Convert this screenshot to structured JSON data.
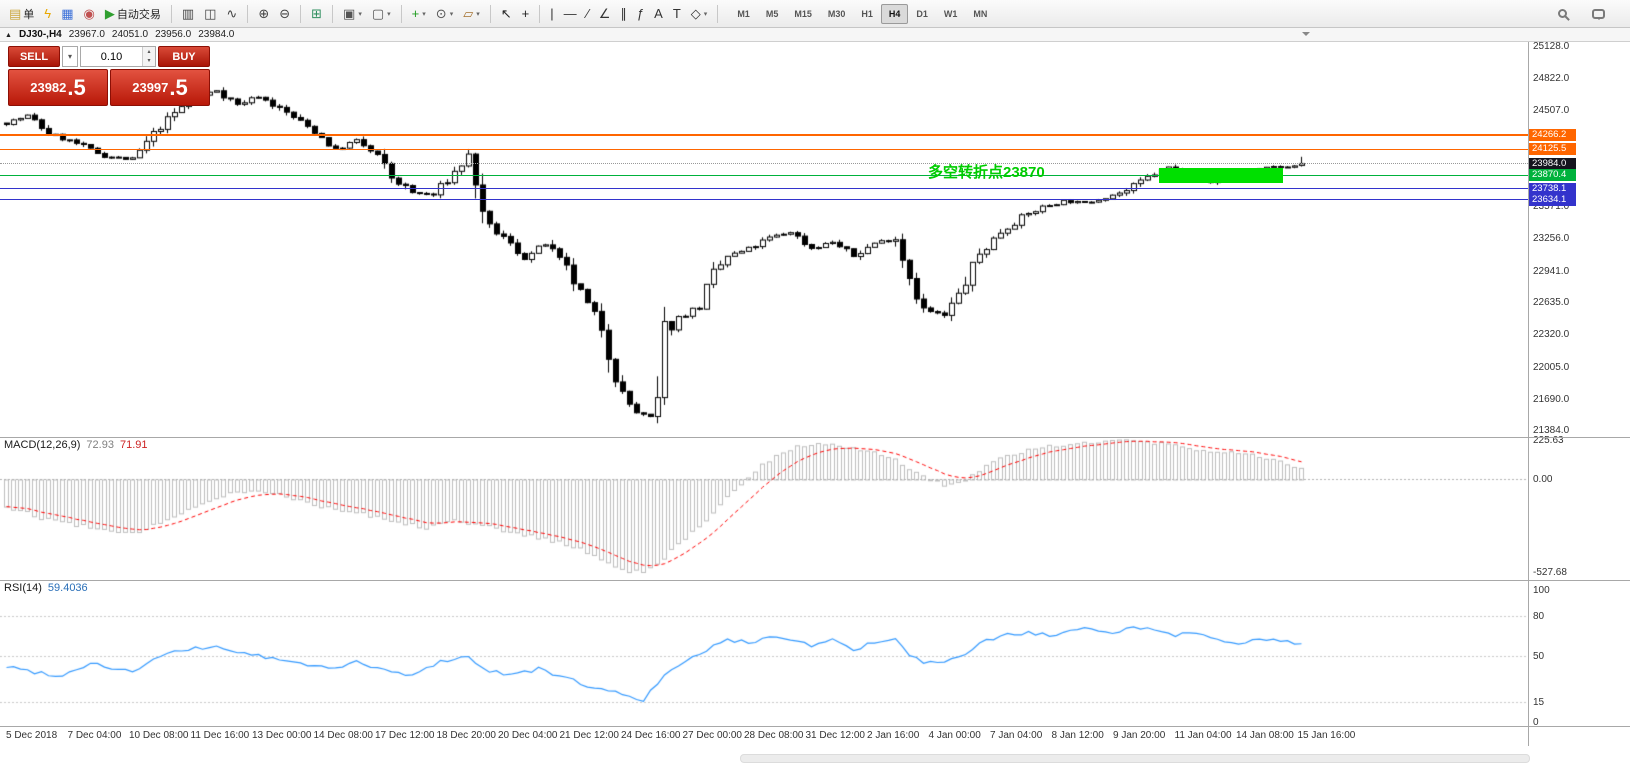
{
  "toolbar": {
    "items": [
      {
        "name": "new-order-button",
        "glyph": "▤",
        "color": "#caa53a",
        "label": "单"
      },
      {
        "name": "quick-trade-icon",
        "glyph": "ϟ",
        "color": "#e8a800"
      },
      {
        "name": "market-watch-icon",
        "glyph": "▦",
        "color": "#3a6fd8"
      },
      {
        "name": "community-icon",
        "glyph": "◉",
        "color": "#c05050"
      },
      {
        "name": "auto-trading-button",
        "glyph": "▶",
        "color": "#2f9e2f",
        "label": "自动交易"
      },
      {
        "kind": "sep"
      },
      {
        "name": "bar-chart-icon",
        "glyph": "▥",
        "color": "#444444"
      },
      {
        "name": "candlestick-chart-icon",
        "glyph": "◫",
        "color": "#444444"
      },
      {
        "name": "line-chart-icon",
        "glyph": "∿",
        "color": "#444444"
      },
      {
        "kind": "sep"
      },
      {
        "name": "zoom-in-icon",
        "glyph": "⊕",
        "color": "#444444"
      },
      {
        "name": "zoom-out-icon",
        "glyph": "⊖",
        "color": "#444444"
      },
      {
        "kind": "sep"
      },
      {
        "name": "tile-windows-icon",
        "glyph": "⊞",
        "color": "#2f8f5f"
      },
      {
        "kind": "sep"
      },
      {
        "name": "new-chart-icon",
        "glyph": "▣",
        "color": "#555555",
        "dropdown": true
      },
      {
        "name": "profiles-icon",
        "glyph": "▢",
        "color": "#555555",
        "dropdown": true
      },
      {
        "kind": "sep"
      },
      {
        "name": "indicators-icon",
        "glyph": "+",
        "color": "#1f9b1f",
        "dropdown": true
      },
      {
        "name": "periods-icon",
        "glyph": "⊙",
        "color": "#555555",
        "dropdown": true
      },
      {
        "name": "templates-icon",
        "glyph": "▱",
        "color": "#a5722f",
        "dropdown": true
      },
      {
        "kind": "sep"
      },
      {
        "name": "cursor-icon",
        "glyph": "↖",
        "color": "#222222"
      },
      {
        "name": "crosshair-icon",
        "glyph": "+",
        "color": "#222222"
      },
      {
        "kind": "sep"
      },
      {
        "name": "vertical-line-icon",
        "glyph": "|",
        "color": "#333333"
      },
      {
        "name": "horizontal-line-icon",
        "glyph": "—",
        "color": "#333333"
      },
      {
        "name": "trendline-icon",
        "glyph": "∕",
        "color": "#333333"
      },
      {
        "name": "angle-icon",
        "glyph": "∠",
        "color": "#333333"
      },
      {
        "name": "channel-icon",
        "glyph": "∥",
        "color": "#333333"
      },
      {
        "name": "fibonacci-icon",
        "glyph": "ƒ",
        "color": "#333333"
      },
      {
        "name": "text-icon",
        "glyph": "A",
        "color": "#333333"
      },
      {
        "name": "label-icon",
        "glyph": "T",
        "color": "#333333"
      },
      {
        "name": "shapes-icon",
        "glyph": "◇",
        "color": "#333333",
        "dropdown": true
      },
      {
        "kind": "sep"
      }
    ],
    "timeframes": {
      "options": [
        "M1",
        "M5",
        "M15",
        "M30",
        "H1",
        "H4",
        "D1",
        "W1",
        "MN"
      ],
      "active": "H4"
    }
  },
  "chart_header": {
    "symbol": "DJ30-,H4",
    "open": "23967.0",
    "high": "24051.0",
    "low": "23956.0",
    "close": "23984.0"
  },
  "trade_panel": {
    "sell_label": "SELL",
    "buy_label": "BUY",
    "volume": "0.10",
    "sell_price": "23982",
    "sell_pip": ".5",
    "buy_price": "23997",
    "buy_pip": ".5"
  },
  "annotation": {
    "text": "多空转折点23870",
    "color": "#00cc00",
    "bar": 132,
    "price": 23935
  },
  "highlight_box": {
    "bar_start": 165,
    "bar_end": 182,
    "price_top": 23945,
    "price_bottom": 23800,
    "color": "#00e000"
  },
  "levels": [
    {
      "name": "resistance-1",
      "price": 24266.2,
      "label": "24266.2",
      "color": "#ff6600",
      "thickness": 2
    },
    {
      "name": "resistance-2",
      "price": 24125.5,
      "label": "24125.5",
      "color": "#ff6600",
      "thickness": 1
    },
    {
      "name": "bid-price",
      "price": 23984.0,
      "label": "23984.0",
      "style": "dotted",
      "line_color": "#999999",
      "color": "#14141e"
    },
    {
      "name": "pivot-green",
      "price": 23870.4,
      "label": "23870.4",
      "color": "#00b23c",
      "thickness": 1
    },
    {
      "name": "support-1",
      "price": 23738.1,
      "label": "23738.1",
      "color": "#3333cc",
      "thickness": 1
    },
    {
      "name": "support-2",
      "price": 23634.1,
      "label": "23634.1",
      "color": "#3333cc",
      "thickness": 1
    }
  ],
  "price_axis_ticks": [
    "25128.0",
    "24822.0",
    "24507.0",
    "23571.0",
    "23256.0",
    "22941.0",
    "22635.0",
    "22320.0",
    "22005.0",
    "21690.0",
    "21384.0"
  ],
  "macd_panel": {
    "title": "MACD(12,26,9)",
    "value1": "72.93",
    "value2": "71.91",
    "scale": [
      "225.63",
      "0.00",
      "-527.68"
    ]
  },
  "rsi_panel": {
    "title": "RSI(14)",
    "value": "59.4036",
    "scale": [
      "100",
      "80",
      "50",
      "15",
      "0"
    ]
  },
  "time_axis": [
    "5 Dec 2018",
    "7 Dec 04:00",
    "10 Dec 08:00",
    "11 Dec 16:00",
    "13 Dec 00:00",
    "14 Dec 08:00",
    "17 Dec 12:00",
    "18 Dec 20:00",
    "20 Dec 04:00",
    "21 Dec 12:00",
    "24 Dec 16:00",
    "27 Dec 00:00",
    "28 Dec 08:00",
    "31 Dec 12:00",
    "2 Jan 16:00",
    "4 Jan 00:00",
    "7 Jan 04:00",
    "8 Jan 12:00",
    "9 Jan 20:00",
    "11 Jan 04:00",
    "14 Jan 08:00",
    "15 Jan 16:00"
  ],
  "chart_data": [
    {
      "type": "candlestick",
      "title": "DJ30-,H4",
      "x_start": "5 Dec 2018",
      "x_end": "15 Jan 16:00",
      "bar_count": 186,
      "ylim": [
        21320,
        25170
      ],
      "up_color": "#ffffff",
      "down_color": "#000000",
      "outline": "#000000",
      "last_candle": {
        "open": 23967.0,
        "high": 24051.0,
        "low": 23956.0,
        "close": 23984.0
      },
      "price_path_anchors": [
        [
          0,
          24380
        ],
        [
          3,
          24450
        ],
        [
          6,
          24280
        ],
        [
          10,
          24180
        ],
        [
          14,
          24060
        ],
        [
          18,
          24020
        ],
        [
          22,
          24350
        ],
        [
          26,
          24600
        ],
        [
          30,
          24700
        ],
        [
          33,
          24560
        ],
        [
          36,
          24640
        ],
        [
          40,
          24480
        ],
        [
          44,
          24300
        ],
        [
          47,
          24120
        ],
        [
          50,
          24210
        ],
        [
          53,
          24050
        ],
        [
          55,
          23850
        ],
        [
          58,
          23700
        ],
        [
          61,
          23680
        ],
        [
          64,
          23900
        ],
        [
          66,
          24060
        ],
        [
          67,
          23850
        ],
        [
          68,
          23420
        ],
        [
          71,
          23260
        ],
        [
          74,
          23060
        ],
        [
          77,
          23200
        ],
        [
          80,
          22950
        ],
        [
          83,
          22600
        ],
        [
          85,
          22400
        ],
        [
          87,
          21950
        ],
        [
          88,
          21720
        ],
        [
          90,
          21560
        ],
        [
          92,
          21500
        ],
        [
          93,
          21620
        ],
        [
          94,
          22320
        ],
        [
          96,
          22480
        ],
        [
          99,
          22600
        ],
        [
          101,
          22900
        ],
        [
          103,
          23080
        ],
        [
          106,
          23150
        ],
        [
          109,
          23260
        ],
        [
          112,
          23320
        ],
        [
          115,
          23160
        ],
        [
          118,
          23220
        ],
        [
          121,
          23080
        ],
        [
          124,
          23210
        ],
        [
          127,
          23260
        ],
        [
          129,
          22900
        ],
        [
          131,
          22560
        ],
        [
          134,
          22500
        ],
        [
          136,
          22700
        ],
        [
          139,
          23100
        ],
        [
          142,
          23320
        ],
        [
          145,
          23460
        ],
        [
          148,
          23560
        ],
        [
          151,
          23620
        ],
        [
          154,
          23600
        ],
        [
          157,
          23660
        ],
        [
          160,
          23720
        ],
        [
          163,
          23850
        ],
        [
          166,
          23950
        ],
        [
          169,
          23860
        ],
        [
          172,
          23800
        ],
        [
          175,
          23880
        ],
        [
          178,
          23910
        ],
        [
          181,
          23950
        ],
        [
          184,
          23960
        ],
        [
          185,
          23984
        ]
      ]
    },
    {
      "type": "macd",
      "title": "MACD(12,26,9)",
      "ylim": [
        -550,
        225
      ],
      "histogram_color": "#bdbdbd",
      "signal_color": "#ff0000",
      "current": {
        "macd": 72.93,
        "signal": 71.91
      },
      "values_anchors": [
        [
          0,
          -150
        ],
        [
          5,
          -215
        ],
        [
          10,
          -255
        ],
        [
          15,
          -295
        ],
        [
          18,
          -310
        ],
        [
          22,
          -245
        ],
        [
          27,
          -145
        ],
        [
          32,
          -75
        ],
        [
          36,
          -60
        ],
        [
          40,
          -90
        ],
        [
          45,
          -150
        ],
        [
          50,
          -185
        ],
        [
          55,
          -230
        ],
        [
          60,
          -270
        ],
        [
          64,
          -225
        ],
        [
          68,
          -260
        ],
        [
          72,
          -300
        ],
        [
          76,
          -330
        ],
        [
          80,
          -365
        ],
        [
          84,
          -430
        ],
        [
          88,
          -515
        ],
        [
          91,
          -528
        ],
        [
          93,
          -490
        ],
        [
          95,
          -395
        ],
        [
          98,
          -300
        ],
        [
          101,
          -185
        ],
        [
          104,
          -60
        ],
        [
          107,
          55
        ],
        [
          110,
          140
        ],
        [
          113,
          190
        ],
        [
          116,
          205
        ],
        [
          119,
          195
        ],
        [
          122,
          175
        ],
        [
          125,
          148
        ],
        [
          128,
          90
        ],
        [
          131,
          15
        ],
        [
          134,
          -25
        ],
        [
          137,
          5
        ],
        [
          140,
          80
        ],
        [
          143,
          140
        ],
        [
          146,
          172
        ],
        [
          149,
          192
        ],
        [
          152,
          205
        ],
        [
          155,
          216
        ],
        [
          158,
          226
        ],
        [
          161,
          221
        ],
        [
          164,
          210
        ],
        [
          167,
          196
        ],
        [
          170,
          176
        ],
        [
          173,
          161
        ],
        [
          176,
          150
        ],
        [
          179,
          131
        ],
        [
          182,
          101
        ],
        [
          185,
          73
        ]
      ]
    },
    {
      "type": "line",
      "title": "RSI(14)",
      "ylim": [
        0,
        100
      ],
      "levels": [
        80,
        50,
        15
      ],
      "line_color": "#3399ff",
      "current": 59.4036,
      "values_anchors": [
        [
          0,
          42
        ],
        [
          4,
          38
        ],
        [
          8,
          35
        ],
        [
          12,
          45
        ],
        [
          15,
          41
        ],
        [
          18,
          38
        ],
        [
          22,
          50
        ],
        [
          26,
          55
        ],
        [
          30,
          57
        ],
        [
          34,
          52
        ],
        [
          38,
          48
        ],
        [
          42,
          44
        ],
        [
          46,
          41
        ],
        [
          50,
          45
        ],
        [
          54,
          39
        ],
        [
          58,
          35
        ],
        [
          62,
          46
        ],
        [
          66,
          50
        ],
        [
          68,
          40
        ],
        [
          72,
          36
        ],
        [
          76,
          40
        ],
        [
          80,
          33
        ],
        [
          84,
          26
        ],
        [
          88,
          21
        ],
        [
          91,
          17
        ],
        [
          94,
          35
        ],
        [
          97,
          45
        ],
        [
          100,
          55
        ],
        [
          103,
          62
        ],
        [
          106,
          60
        ],
        [
          109,
          65
        ],
        [
          112,
          63
        ],
        [
          115,
          58
        ],
        [
          118,
          62
        ],
        [
          121,
          55
        ],
        [
          124,
          60
        ],
        [
          127,
          62
        ],
        [
          129,
          51
        ],
        [
          131,
          45
        ],
        [
          134,
          44
        ],
        [
          137,
          52
        ],
        [
          140,
          62
        ],
        [
          143,
          66
        ],
        [
          146,
          68
        ],
        [
          149,
          65
        ],
        [
          152,
          68
        ],
        [
          155,
          71
        ],
        [
          158,
          68
        ],
        [
          161,
          72
        ],
        [
          164,
          70
        ],
        [
          167,
          66
        ],
        [
          170,
          68
        ],
        [
          173,
          64
        ],
        [
          176,
          58
        ],
        [
          179,
          63
        ],
        [
          182,
          61
        ],
        [
          185,
          59.4
        ]
      ]
    }
  ]
}
